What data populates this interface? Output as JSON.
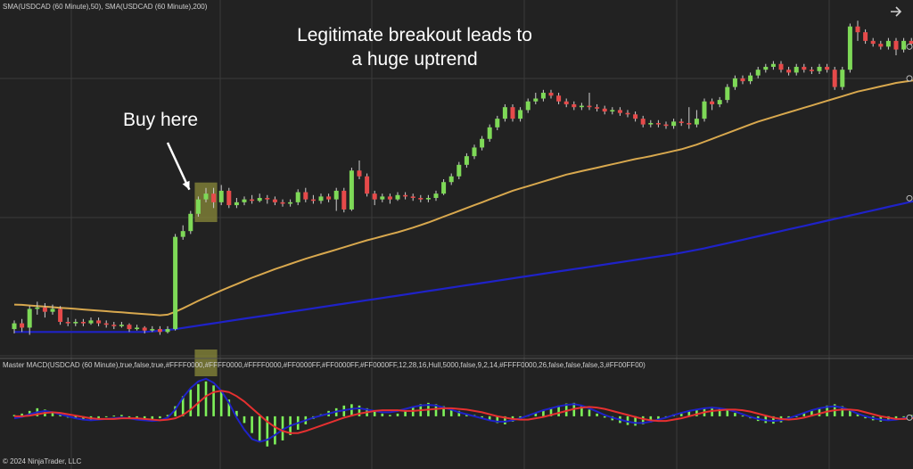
{
  "header": {
    "price_indicator_label": "SMA(USDCAD (60 Minute),50), SMA(USDCAD (60 Minute),200)",
    "macd_indicator_label": "Master MACD(USDCAD (60 Minute),true,false,true,#FFFF0000,#FFFF0000,#FFFF0000,#FF0000FF,#FF0000FF,#FF0000FF,12,28,16,Hull,5000,false,9,2,14,#FFFF0000,26,false,false,false,3,#FF00FF00)",
    "copyright": "© 2024 NinjaTrader, LLC"
  },
  "annotations": {
    "headline_line1": "Legitimate breakout leads to",
    "headline_line2": "a huge uptrend",
    "buy_label": "Buy here"
  },
  "icons": {
    "expand": "arrow-right-icon"
  },
  "colors": {
    "background": "#222222",
    "grid": "#3a3a3a",
    "bull_candle": "#7ed957",
    "bear_candle": "#e64a4a",
    "sma50": "#d8a84e",
    "sma200": "#1f22c8",
    "macd_line": "#1f22c8",
    "signal_line": "#e63030",
    "histogram": "#7ef25a",
    "highlight": "#8a8a3a"
  },
  "chart_data": {
    "type": "candlestick",
    "instrument": "USDCAD (60 Minute)",
    "candles": [
      [
        1.338,
        1.34,
        1.341,
        1.3365
      ],
      [
        1.34,
        1.3385,
        1.3415,
        1.337
      ],
      [
        1.3385,
        1.345,
        1.346,
        1.336
      ],
      [
        1.345,
        1.3455,
        1.3475,
        1.343
      ],
      [
        1.3455,
        1.344,
        1.347,
        1.342
      ],
      [
        1.344,
        1.345,
        1.3465,
        1.343
      ],
      [
        1.345,
        1.3405,
        1.346,
        1.3395
      ],
      [
        1.3405,
        1.34,
        1.342,
        1.339
      ],
      [
        1.34,
        1.3405,
        1.3415,
        1.339
      ],
      [
        1.3405,
        1.34,
        1.3415,
        1.339
      ],
      [
        1.34,
        1.341,
        1.342,
        1.3395
      ],
      [
        1.341,
        1.34,
        1.342,
        1.339
      ],
      [
        1.34,
        1.3395,
        1.341,
        1.3385
      ],
      [
        1.3395,
        1.339,
        1.3405,
        1.338
      ],
      [
        1.339,
        1.3395,
        1.3405,
        1.3385
      ],
      [
        1.3395,
        1.338,
        1.34,
        1.337
      ],
      [
        1.338,
        1.3385,
        1.3395,
        1.3375
      ],
      [
        1.3385,
        1.3375,
        1.339,
        1.3365
      ],
      [
        1.3375,
        1.338,
        1.339,
        1.337
      ],
      [
        1.338,
        1.337,
        1.339,
        1.336
      ],
      [
        1.337,
        1.338,
        1.339,
        1.3365
      ],
      [
        1.338,
        1.37,
        1.371,
        1.3375
      ],
      [
        1.37,
        1.372,
        1.374,
        1.369
      ],
      [
        1.372,
        1.378,
        1.379,
        1.371
      ],
      [
        1.378,
        1.383,
        1.384,
        1.377
      ],
      [
        1.383,
        1.385,
        1.387,
        1.382
      ],
      [
        1.385,
        1.382,
        1.387,
        1.38
      ],
      [
        1.382,
        1.386,
        1.388,
        1.381
      ],
      [
        1.386,
        1.381,
        1.387,
        1.38
      ],
      [
        1.381,
        1.382,
        1.3835,
        1.38
      ],
      [
        1.382,
        1.383,
        1.384,
        1.381
      ],
      [
        1.383,
        1.3825,
        1.3845,
        1.3815
      ],
      [
        1.3825,
        1.3835,
        1.385,
        1.382
      ],
      [
        1.3835,
        1.383,
        1.3845,
        1.3815
      ],
      [
        1.383,
        1.382,
        1.384,
        1.381
      ],
      [
        1.382,
        1.3815,
        1.383,
        1.3805
      ],
      [
        1.3815,
        1.382,
        1.383,
        1.3805
      ],
      [
        1.382,
        1.3855,
        1.3865,
        1.381
      ],
      [
        1.3855,
        1.383,
        1.387,
        1.382
      ],
      [
        1.383,
        1.3825,
        1.3845,
        1.3815
      ],
      [
        1.3825,
        1.384,
        1.385,
        1.3815
      ],
      [
        1.384,
        1.383,
        1.385,
        1.382
      ],
      [
        1.383,
        1.386,
        1.387,
        1.379
      ],
      [
        1.386,
        1.3795,
        1.387,
        1.3785
      ],
      [
        1.3795,
        1.393,
        1.394,
        1.379
      ],
      [
        1.393,
        1.391,
        1.3965,
        1.39
      ],
      [
        1.391,
        1.385,
        1.392,
        1.384
      ],
      [
        1.385,
        1.383,
        1.386,
        1.381
      ],
      [
        1.383,
        1.384,
        1.385,
        1.382
      ],
      [
        1.384,
        1.383,
        1.385,
        1.3815
      ],
      [
        1.383,
        1.3845,
        1.3855,
        1.3825
      ],
      [
        1.3845,
        1.384,
        1.3855,
        1.383
      ],
      [
        1.384,
        1.3835,
        1.385,
        1.3825
      ],
      [
        1.3835,
        1.383,
        1.3845,
        1.382
      ],
      [
        1.383,
        1.3835,
        1.3845,
        1.382
      ],
      [
        1.3835,
        1.385,
        1.386,
        1.3825
      ],
      [
        1.385,
        1.389,
        1.39,
        1.3845
      ],
      [
        1.389,
        1.391,
        1.392,
        1.388
      ],
      [
        1.391,
        1.395,
        1.396,
        1.39
      ],
      [
        1.395,
        1.398,
        1.399,
        1.394
      ],
      [
        1.398,
        1.401,
        1.402,
        1.397
      ],
      [
        1.401,
        1.404,
        1.405,
        1.4
      ],
      [
        1.404,
        1.408,
        1.409,
        1.403
      ],
      [
        1.408,
        1.411,
        1.412,
        1.407
      ],
      [
        1.411,
        1.415,
        1.416,
        1.41
      ],
      [
        1.415,
        1.411,
        1.416,
        1.41
      ],
      [
        1.411,
        1.414,
        1.415,
        1.41
      ],
      [
        1.414,
        1.417,
        1.418,
        1.413
      ],
      [
        1.417,
        1.418,
        1.42,
        1.416
      ],
      [
        1.418,
        1.42,
        1.421,
        1.417
      ],
      [
        1.42,
        1.419,
        1.421,
        1.418
      ],
      [
        1.419,
        1.417,
        1.42,
        1.416
      ],
      [
        1.417,
        1.416,
        1.418,
        1.415
      ],
      [
        1.416,
        1.415,
        1.417,
        1.414
      ],
      [
        1.415,
        1.4155,
        1.4165,
        1.414
      ],
      [
        1.4155,
        1.415,
        1.42,
        1.414
      ],
      [
        1.415,
        1.4145,
        1.416,
        1.4135
      ],
      [
        1.4145,
        1.4135,
        1.4155,
        1.4125
      ],
      [
        1.4135,
        1.414,
        1.415,
        1.4125
      ],
      [
        1.414,
        1.413,
        1.415,
        1.412
      ],
      [
        1.413,
        1.4125,
        1.414,
        1.4115
      ],
      [
        1.4125,
        1.411,
        1.4135,
        1.41
      ],
      [
        1.411,
        1.409,
        1.412,
        1.408
      ],
      [
        1.409,
        1.4095,
        1.4105,
        1.408
      ],
      [
        1.4095,
        1.409,
        1.4105,
        1.408
      ],
      [
        1.409,
        1.4085,
        1.41,
        1.4075
      ],
      [
        1.4085,
        1.41,
        1.411,
        1.4075
      ],
      [
        1.41,
        1.4095,
        1.411,
        1.4085
      ],
      [
        1.4095,
        1.409,
        1.415,
        1.4075
      ],
      [
        1.409,
        1.411,
        1.414,
        1.408
      ],
      [
        1.411,
        1.417,
        1.418,
        1.41
      ],
      [
        1.417,
        1.416,
        1.418,
        1.414
      ],
      [
        1.416,
        1.4175,
        1.4185,
        1.415
      ],
      [
        1.4175,
        1.422,
        1.423,
        1.4165
      ],
      [
        1.422,
        1.425,
        1.426,
        1.421
      ],
      [
        1.425,
        1.424,
        1.426,
        1.423
      ],
      [
        1.424,
        1.426,
        1.427,
        1.423
      ],
      [
        1.426,
        1.428,
        1.429,
        1.425
      ],
      [
        1.428,
        1.429,
        1.43,
        1.427
      ],
      [
        1.429,
        1.43,
        1.431,
        1.428
      ],
      [
        1.43,
        1.428,
        1.431,
        1.427
      ],
      [
        1.428,
        1.427,
        1.429,
        1.426
      ],
      [
        1.427,
        1.429,
        1.43,
        1.426
      ],
      [
        1.429,
        1.428,
        1.43,
        1.427
      ],
      [
        1.428,
        1.4275,
        1.429,
        1.4265
      ],
      [
        1.4275,
        1.429,
        1.43,
        1.4265
      ],
      [
        1.429,
        1.428,
        1.43,
        1.427
      ],
      [
        1.428,
        1.422,
        1.429,
        1.421
      ],
      [
        1.422,
        1.428,
        1.429,
        1.421
      ],
      [
        1.428,
        1.443,
        1.444,
        1.427
      ],
      [
        1.443,
        1.441,
        1.445,
        1.438
      ],
      [
        1.441,
        1.438,
        1.442,
        1.437
      ],
      [
        1.438,
        1.437,
        1.439,
        1.436
      ],
      [
        1.437,
        1.436,
        1.438,
        1.435
      ],
      [
        1.436,
        1.438,
        1.439,
        1.435
      ],
      [
        1.438,
        1.435,
        1.439,
        1.433
      ],
      [
        1.435,
        1.438,
        1.439,
        1.434
      ],
      [
        1.438,
        1.437,
        1.439,
        1.436
      ],
      [
        1.437,
        1.4375,
        1.4385,
        1.436
      ],
      [
        1.4375,
        1.436,
        1.4385,
        1.435
      ]
    ],
    "sma50": [
      1.3465,
      1.3464,
      1.3462,
      1.346,
      1.3458,
      1.3456,
      1.3454,
      1.3452,
      1.345,
      1.3448,
      1.3446,
      1.3444,
      1.3442,
      1.344,
      1.3438,
      1.3436,
      1.3434,
      1.3432,
      1.343,
      1.3428,
      1.343,
      1.344,
      1.3452,
      1.3465,
      1.3478,
      1.349,
      1.3502,
      1.3514,
      1.3525,
      1.3536,
      1.3547,
      1.3558,
      1.3568,
      1.3578,
      1.3588,
      1.3597,
      1.3606,
      1.3615,
      1.3624,
      1.3632,
      1.364,
      1.3648,
      1.3656,
      1.3664,
      1.3672,
      1.368,
      1.3688,
      1.3695,
      1.3702,
      1.3709,
      1.3716,
      1.3724,
      1.3732,
      1.3741,
      1.375,
      1.376,
      1.377,
      1.378,
      1.379,
      1.38,
      1.381,
      1.382,
      1.383,
      1.384,
      1.385,
      1.386,
      1.3868,
      1.3876,
      1.3884,
      1.3892,
      1.39,
      1.3908,
      1.3916,
      1.3922,
      1.3928,
      1.3934,
      1.394,
      1.3946,
      1.3952,
      1.3958,
      1.3964,
      1.397,
      1.3975,
      1.398,
      1.3986,
      1.3992,
      1.3998,
      1.4004,
      1.4012,
      1.402,
      1.403,
      1.404,
      1.405,
      1.406,
      1.407,
      1.408,
      1.409,
      1.41,
      1.4108,
      1.4116,
      1.4124,
      1.4132,
      1.414,
      1.4148,
      1.4156,
      1.4164,
      1.4172,
      1.418,
      1.4188,
      1.4196,
      1.4204,
      1.421,
      1.4216,
      1.4222,
      1.4228,
      1.4234,
      1.4238,
      1.4242,
      1.4246,
      1.425
    ],
    "sma200": [
      1.337,
      1.337,
      1.337,
      1.337,
      1.337,
      1.337,
      1.337,
      1.337,
      1.337,
      1.337,
      1.337,
      1.337,
      1.337,
      1.337,
      1.337,
      1.337,
      1.337,
      1.337,
      1.3372,
      1.3374,
      1.3377,
      1.338,
      1.3384,
      1.3388,
      1.3392,
      1.3396,
      1.34,
      1.3404,
      1.3408,
      1.3412,
      1.3416,
      1.342,
      1.3424,
      1.3428,
      1.3432,
      1.3436,
      1.344,
      1.3444,
      1.3448,
      1.3452,
      1.3456,
      1.346,
      1.3464,
      1.3468,
      1.3472,
      1.3476,
      1.348,
      1.3484,
      1.3488,
      1.3492,
      1.3496,
      1.35,
      1.3504,
      1.3508,
      1.3512,
      1.3516,
      1.352,
      1.3524,
      1.3528,
      1.3532,
      1.3536,
      1.354,
      1.3544,
      1.3548,
      1.3552,
      1.3556,
      1.356,
      1.3564,
      1.3568,
      1.3572,
      1.3576,
      1.358,
      1.3584,
      1.3588,
      1.3592,
      1.3596,
      1.36,
      1.3604,
      1.3608,
      1.3612,
      1.3616,
      1.362,
      1.3624,
      1.3628,
      1.3632,
      1.3636,
      1.364,
      1.3645,
      1.365,
      1.3655,
      1.366,
      1.3666,
      1.3672,
      1.3678,
      1.3684,
      1.369,
      1.3696,
      1.3702,
      1.3708,
      1.3714,
      1.372,
      1.3726,
      1.3732,
      1.3738,
      1.3744,
      1.375,
      1.3756,
      1.3762,
      1.3768,
      1.3774,
      1.378,
      1.3786,
      1.3792,
      1.3798,
      1.3804,
      1.381,
      1.3816,
      1.3822,
      1.3828,
      1.3834
    ],
    "price_ylim": [
      1.334,
      1.446
    ],
    "macd": {
      "histogram": [
        0.2,
        0.4,
        0.8,
        1.2,
        1.0,
        0.6,
        0.2,
        -0.2,
        -0.4,
        -0.6,
        -0.5,
        -0.3,
        -0.1,
        0.1,
        0.2,
        0.0,
        -0.3,
        -0.5,
        -0.6,
        -0.3,
        0.2,
        1.5,
        3.0,
        4.0,
        4.8,
        5.2,
        4.6,
        3.8,
        2.5,
        0.8,
        -1.0,
        -2.5,
        -3.8,
        -4.5,
        -4.2,
        -3.6,
        -2.8,
        -2.0,
        -1.2,
        -0.4,
        0.3,
        0.8,
        1.2,
        1.6,
        1.8,
        1.6,
        1.2,
        0.8,
        0.4,
        0.2,
        0.4,
        0.9,
        1.4,
        1.8,
        2.0,
        1.8,
        1.5,
        1.2,
        0.8,
        0.4,
        0.2,
        -0.2,
        -0.6,
        -1.0,
        -1.2,
        -0.8,
        -0.4,
        0.1,
        0.5,
        0.9,
        1.3,
        1.6,
        1.9,
        2.0,
        1.6,
        1.0,
        0.4,
        -0.2,
        -0.6,
        -1.0,
        -1.3,
        -1.4,
        -1.2,
        -0.9,
        -0.5,
        -0.1,
        0.3,
        0.6,
        0.9,
        1.1,
        1.3,
        1.4,
        1.2,
        0.9,
        0.5,
        0.1,
        -0.3,
        -0.7,
        -1.0,
        -1.1,
        -0.9,
        -0.5,
        0.0,
        0.5,
        0.9,
        1.3,
        1.6,
        1.8,
        1.5,
        0.9,
        0.3,
        -0.3,
        -0.6,
        -0.8,
        -0.6,
        -0.3,
        0.0,
        0.2,
        0.1,
        -0.1
      ],
      "macd_line": [
        -0.3,
        -0.1,
        0.3,
        0.6,
        0.8,
        0.6,
        0.3,
        0.0,
        -0.3,
        -0.5,
        -0.6,
        -0.5,
        -0.4,
        -0.3,
        -0.2,
        -0.3,
        -0.5,
        -0.6,
        -0.7,
        -0.6,
        -0.2,
        1.0,
        2.8,
        4.2,
        5.2,
        5.6,
        5.0,
        3.8,
        2.0,
        -0.2,
        -2.0,
        -3.4,
        -3.8,
        -3.5,
        -2.8,
        -2.0,
        -1.4,
        -1.0,
        -0.6,
        -0.2,
        0.1,
        0.4,
        0.7,
        0.9,
        1.1,
        1.2,
        1.0,
        0.8,
        0.6,
        0.6,
        0.8,
        1.1,
        1.4,
        1.6,
        1.7,
        1.6,
        1.3,
        1.0,
        0.6,
        0.3,
        0.0,
        -0.3,
        -0.6,
        -0.8,
        -0.8,
        -0.6,
        -0.3,
        0.1,
        0.5,
        0.9,
        1.2,
        1.5,
        1.7,
        1.8,
        1.6,
        1.2,
        0.7,
        0.2,
        -0.2,
        -0.5,
        -0.8,
        -1.0,
        -1.0,
        -0.8,
        -0.5,
        -0.2,
        0.2,
        0.5,
        0.8,
        1.0,
        1.2,
        1.3,
        1.2,
        1.0,
        0.7,
        0.3,
        -0.1,
        -0.4,
        -0.6,
        -0.7,
        -0.6,
        -0.3,
        0.1,
        0.5,
        0.9,
        1.2,
        1.4,
        1.5,
        1.3,
        0.9,
        0.4,
        0.0,
        -0.3,
        -0.5,
        -0.6,
        -0.5,
        -0.3,
        -0.1,
        -0.1,
        -0.2
      ],
      "signal_line": [
        0.0,
        0.0,
        0.1,
        0.3,
        0.5,
        0.6,
        0.5,
        0.3,
        0.1,
        -0.1,
        -0.3,
        -0.4,
        -0.4,
        -0.4,
        -0.3,
        -0.3,
        -0.3,
        -0.4,
        -0.5,
        -0.6,
        -0.5,
        -0.3,
        0.2,
        1.0,
        2.0,
        3.0,
        3.6,
        3.8,
        3.6,
        3.0,
        2.2,
        1.2,
        0.2,
        -0.8,
        -1.6,
        -2.2,
        -2.5,
        -2.5,
        -2.2,
        -1.8,
        -1.4,
        -1.0,
        -0.6,
        -0.2,
        0.1,
        0.4,
        0.6,
        0.8,
        0.9,
        0.9,
        0.9,
        0.8,
        0.8,
        0.9,
        1.0,
        1.1,
        1.2,
        1.2,
        1.1,
        1.0,
        0.8,
        0.6,
        0.3,
        0.0,
        -0.2,
        -0.4,
        -0.5,
        -0.5,
        -0.3,
        -0.1,
        0.2,
        0.5,
        0.8,
        1.1,
        1.3,
        1.4,
        1.3,
        1.1,
        0.8,
        0.5,
        0.2,
        -0.1,
        -0.4,
        -0.6,
        -0.7,
        -0.7,
        -0.5,
        -0.3,
        0.0,
        0.3,
        0.6,
        0.8,
        0.9,
        1.0,
        1.0,
        0.9,
        0.7,
        0.4,
        0.1,
        -0.2,
        -0.4,
        -0.5,
        -0.4,
        -0.2,
        0.1,
        0.4,
        0.7,
        0.9,
        1.0,
        1.0,
        0.9,
        0.6,
        0.3,
        0.0,
        -0.2,
        -0.4,
        -0.4,
        -0.3,
        -0.2,
        -0.2
      ],
      "ylim": [
        -6.0,
        6.5
      ]
    },
    "highlight_bars": [
      24,
      25,
      26
    ],
    "grid": true
  }
}
